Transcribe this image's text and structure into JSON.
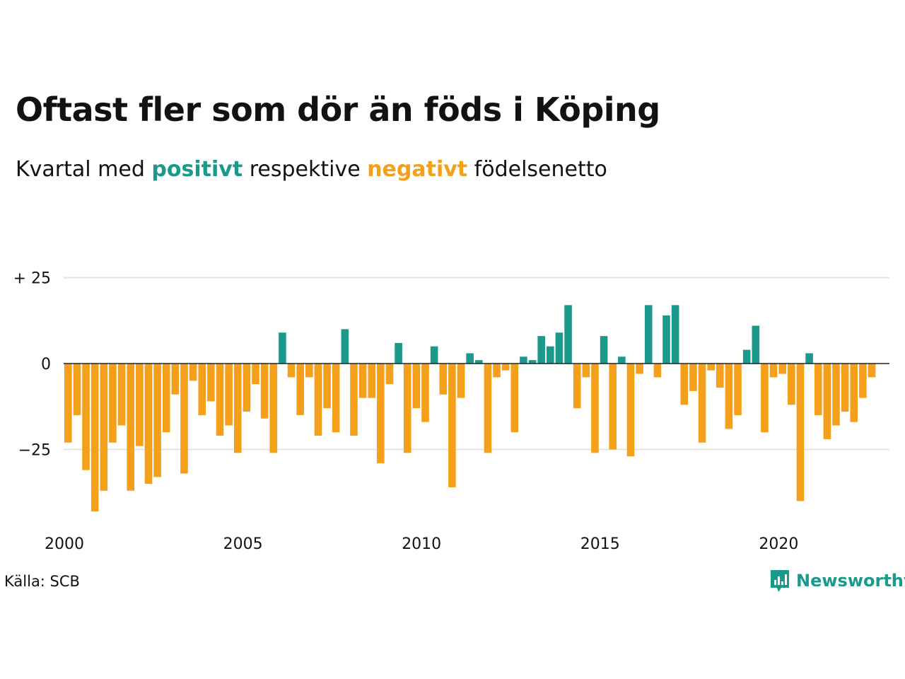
{
  "title": "Oftast fler som dör än föds i Köping",
  "subtitle": {
    "prefix": "Kvartal med ",
    "positive": "positivt",
    "middle": " respektive ",
    "negative": "negativt",
    "suffix": " födelsenetto"
  },
  "colors": {
    "positive": "#1b998b",
    "negative": "#f5a01a",
    "grid": "#e3e3e3",
    "zero": "#222222"
  },
  "source": "Källa: SCB",
  "brand": {
    "name": "Newsworthy",
    "icon": "newsworthy-logo-icon"
  },
  "chart_data": {
    "type": "bar",
    "title": "Oftast fler som dör än föds i Köping",
    "ylim": [
      -47,
      30
    ],
    "y_ticks": [
      25,
      0,
      -25
    ],
    "y_tick_labels": [
      "+ 25",
      "0",
      "−25"
    ],
    "x_tick_labels": [
      "2000",
      "2005",
      "2010",
      "2015",
      "2020"
    ],
    "grid": true,
    "start": "2000 Q1",
    "values": [
      -23,
      -15,
      -31,
      -43,
      -37,
      -23,
      -18,
      -37,
      -24,
      -35,
      -33,
      -20,
      -9,
      -32,
      -5,
      -15,
      -11,
      -21,
      -18,
      -26,
      -14,
      -6,
      -16,
      -26,
      9,
      -4,
      -15,
      -4,
      -21,
      -13,
      -20,
      10,
      -21,
      -10,
      -10,
      -29,
      -6,
      6,
      -26,
      -13,
      -17,
      5,
      -9,
      -36,
      -10,
      3,
      1,
      -26,
      -4,
      -2,
      -20,
      2,
      1,
      8,
      5,
      9,
      17,
      -13,
      -4,
      -26,
      8,
      -25,
      2,
      -27,
      -3,
      17,
      -4,
      14,
      17,
      -12,
      -8,
      -23,
      -2,
      -7,
      -19,
      -15,
      4,
      11,
      -20,
      -4,
      -3,
      -12,
      -40,
      3,
      -15,
      -22,
      -18,
      -14,
      -17,
      -10,
      -4
    ]
  }
}
